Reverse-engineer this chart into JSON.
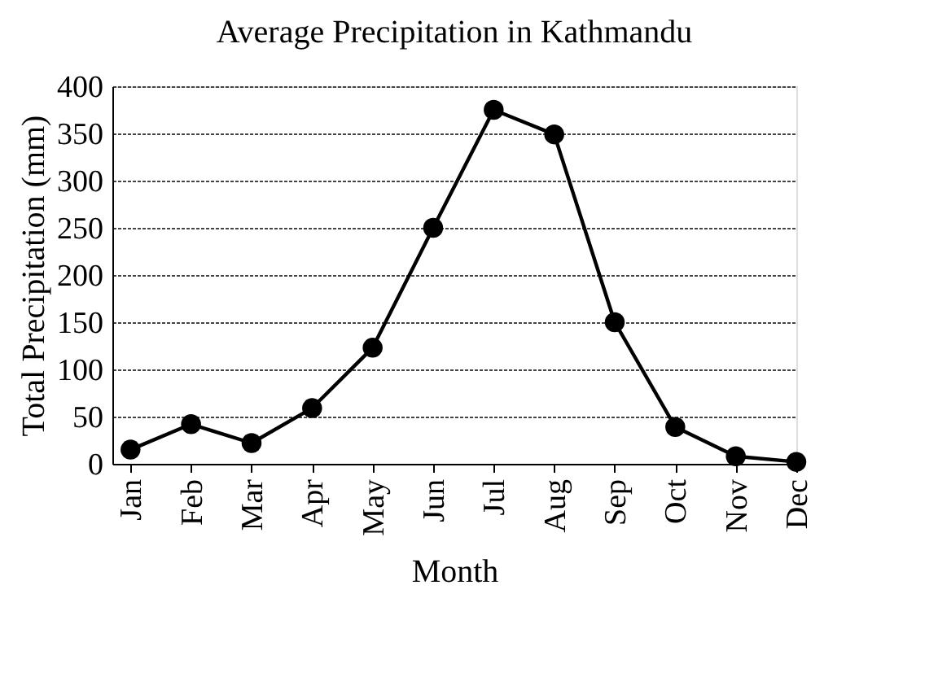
{
  "chart_data": {
    "type": "line",
    "title": "Average Precipitation in Kathmandu",
    "xlabel": "Month",
    "ylabel": "Total Precipitation (mm)",
    "categories": [
      "Jan",
      "Feb",
      "Mar",
      "Apr",
      "May",
      "Jun",
      "Jul",
      "Aug",
      "Sep",
      "Oct",
      "Nov",
      "Dec"
    ],
    "series": [
      {
        "color": "#000000",
        "values": [
          15,
          42,
          22,
          59,
          123,
          250,
          375,
          349,
          150,
          39,
          8,
          2
        ]
      }
    ],
    "ylim": [
      0,
      400
    ],
    "yticks": [
      0,
      50,
      100,
      150,
      200,
      250,
      300,
      350,
      400
    ],
    "grid": "y",
    "marker": "circle",
    "line_style": "solid",
    "legend": false
  }
}
